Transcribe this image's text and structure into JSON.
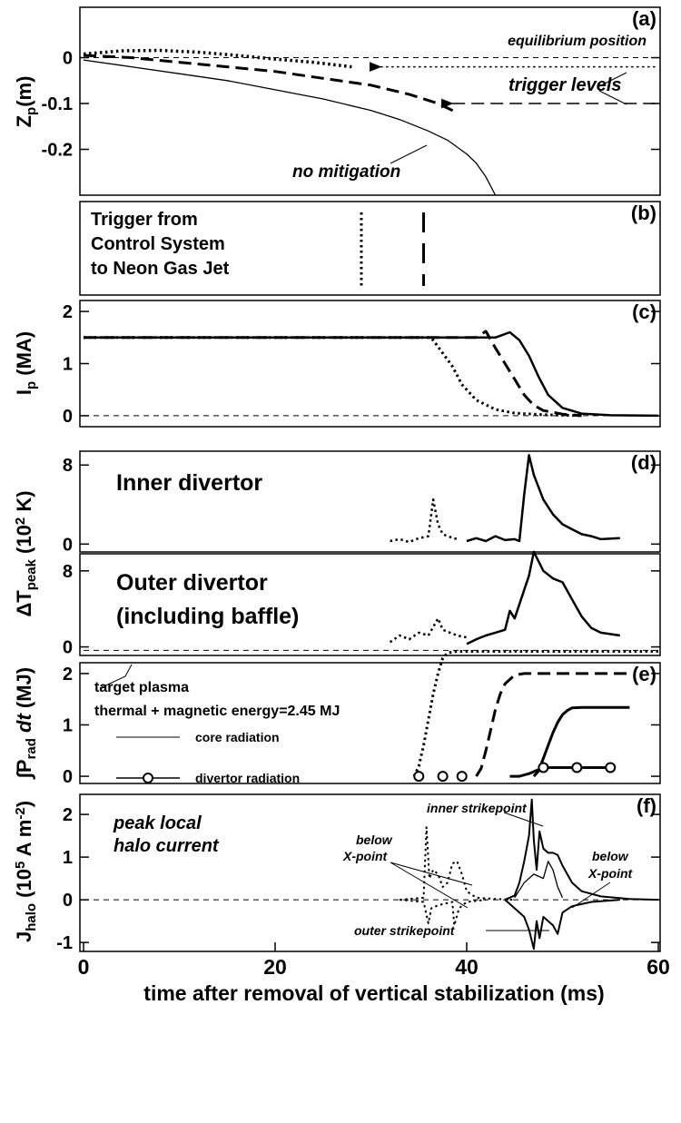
{
  "chart_data": [
    {
      "type": "line",
      "panel_label": "(a)",
      "xlim": [
        0,
        60
      ],
      "ylim": [
        -0.3,
        0.11
      ],
      "yticks": [
        0,
        -0.1,
        -0.2
      ],
      "ylabel": [
        {
          "text": "Z"
        },
        {
          "text": "p",
          "sub": true
        },
        {
          "text": "(m)"
        }
      ],
      "annotations": [
        "equilibrium position",
        "trigger levels",
        "no mitigation"
      ],
      "series": [
        {
          "color": "#000",
          "dash": "solid",
          "width": 1.3,
          "x": [
            0,
            5,
            10,
            15,
            20,
            25,
            30,
            33,
            36,
            38,
            40,
            41,
            42,
            43
          ],
          "values": [
            -0.005,
            -0.02,
            -0.035,
            -0.05,
            -0.07,
            -0.09,
            -0.115,
            -0.135,
            -0.16,
            -0.18,
            -0.21,
            -0.23,
            -0.26,
            -0.3
          ]
        },
        {
          "color": "#000",
          "dash": "dashed",
          "width": 3,
          "x": [
            0,
            5,
            10,
            15,
            20,
            25,
            30,
            34,
            37,
            39
          ],
          "values": [
            0.005,
            0,
            -0.01,
            -0.02,
            -0.03,
            -0.045,
            -0.06,
            -0.08,
            -0.1,
            -0.12
          ]
        },
        {
          "color": "#000",
          "dash": "dotted",
          "width": 3.5,
          "x": [
            0,
            4,
            8,
            12,
            16,
            20,
            24,
            28
          ],
          "values": [
            0.008,
            0.015,
            0.016,
            0.012,
            0.005,
            -0.003,
            -0.01,
            -0.02
          ]
        },
        {
          "color": "#000",
          "dash": "thin-dashed",
          "width": 1,
          "x": [
            0,
            60
          ],
          "values": [
            0,
            0
          ]
        },
        {
          "color": "#000",
          "dash": "dotted",
          "width": 1.5,
          "arrow": "start",
          "x": [
            31,
            60
          ],
          "values": [
            -0.02,
            -0.02
          ]
        },
        {
          "color": "#000",
          "dash": "dashed",
          "width": 1.5,
          "arrow": "start",
          "x": [
            38.5,
            60
          ],
          "values": [
            -0.1,
            -0.1
          ]
        }
      ]
    },
    {
      "type": "timeline",
      "panel_label": "(b)",
      "xlim": [
        0,
        60
      ],
      "annotations": [
        "Trigger from",
        "Control System",
        "to Neon Gas Jet"
      ],
      "events": [
        {
          "x": 29,
          "dash": "dotted"
        },
        {
          "x": 35.5,
          "dash": "dashed"
        }
      ]
    },
    {
      "type": "line",
      "panel_label": "(c)",
      "xlim": [
        0,
        60
      ],
      "ylim": [
        -0.21,
        2.21
      ],
      "yticks": [
        0,
        1,
        2
      ],
      "ylabel": [
        {
          "text": "I"
        },
        {
          "text": "p",
          "sub": true
        },
        {
          "text": " (MA)"
        }
      ],
      "series": [
        {
          "color": "#000",
          "dash": "thin-dashed",
          "width": 1,
          "x": [
            0,
            60
          ],
          "values": [
            0,
            0
          ]
        },
        {
          "color": "#000",
          "dash": "solid",
          "width": 2.5,
          "x": [
            0,
            43,
            44.5,
            45.5,
            46.5,
            47.5,
            48.5,
            50,
            52,
            55,
            60
          ],
          "values": [
            1.5,
            1.5,
            1.6,
            1.45,
            1.15,
            0.75,
            0.4,
            0.15,
            0.04,
            0.01,
            0
          ]
        },
        {
          "color": "#000",
          "dash": "dashed",
          "width": 3,
          "x": [
            0,
            41,
            42,
            43,
            44,
            45,
            46,
            47,
            48,
            50,
            52
          ],
          "values": [
            1.5,
            1.5,
            1.62,
            1.3,
            1.0,
            0.7,
            0.4,
            0.2,
            0.1,
            0.03,
            0
          ]
        },
        {
          "color": "#000",
          "dash": "dotted",
          "width": 3,
          "x": [
            0,
            36,
            36.5,
            37.5,
            38.5,
            39.5,
            41,
            43,
            45,
            48,
            52
          ],
          "values": [
            1.5,
            1.5,
            1.45,
            1.2,
            0.95,
            0.6,
            0.3,
            0.12,
            0.05,
            0.02,
            0
          ]
        }
      ]
    },
    {
      "type": "line",
      "panel_label": "(d)",
      "xlim": [
        0,
        60
      ],
      "ylim": [
        -0.8,
        9.4
      ],
      "yticks": [
        0,
        8
      ],
      "ylabel": [
        {
          "text": "ΔT"
        },
        {
          "text": "peak",
          "sub": true
        },
        {
          "text": " (10"
        },
        {
          "text": "2",
          "sup": true
        },
        {
          "text": " K)"
        }
      ],
      "annotations": [
        "Inner divertor"
      ],
      "series": [
        {
          "color": "#000",
          "dash": "dotted",
          "width": 2.5,
          "x": [
            32,
            33,
            34,
            35,
            36,
            36.5,
            37,
            37.5,
            38,
            39
          ],
          "values": [
            0.3,
            0.5,
            0.2,
            0.6,
            0.8,
            4.5,
            2,
            1.0,
            0.8,
            0.5
          ]
        },
        {
          "color": "#000",
          "dash": "solid",
          "width": 2.5,
          "x": [
            40,
            41,
            42,
            43,
            44,
            45,
            45.5,
            46,
            46.5,
            47,
            48,
            49,
            50,
            51,
            52,
            53,
            54,
            56
          ],
          "values": [
            0.3,
            0.6,
            0.3,
            0.8,
            0.4,
            0.5,
            0.3,
            5,
            9,
            7,
            4.5,
            3,
            2,
            1.5,
            1.0,
            0.8,
            0.5,
            0.6
          ]
        }
      ]
    },
    {
      "type": "line",
      "xlim": [
        0,
        60
      ],
      "ylim": [
        -0.9,
        9.8
      ],
      "yticks": [
        0,
        8
      ],
      "annotations": [
        "Outer divertor",
        "(including baffle)"
      ],
      "series": [
        {
          "color": "#000",
          "dash": "dotted",
          "width": 2.5,
          "x": [
            32,
            33,
            34,
            35,
            36,
            37,
            37.5,
            38,
            39,
            40
          ],
          "values": [
            0.5,
            1.2,
            0.8,
            1.5,
            1.2,
            3,
            1.8,
            1.6,
            1.2,
            1.0
          ]
        },
        {
          "color": "#000",
          "dash": "solid",
          "width": 2.5,
          "x": [
            40,
            41,
            42,
            43,
            44,
            44.5,
            45,
            46,
            46.5,
            47,
            48,
            49,
            50,
            51,
            52,
            53,
            54,
            56
          ],
          "values": [
            0.3,
            0.8,
            1.2,
            1.5,
            1.8,
            3.8,
            3,
            6,
            7.5,
            10,
            8,
            7.2,
            6.8,
            5,
            3.2,
            2,
            1.5,
            1.2
          ]
        }
      ]
    },
    {
      "type": "line",
      "panel_label": "(e)",
      "xlim": [
        0,
        60
      ],
      "ylim": [
        -0.14,
        2.21
      ],
      "yticks": [
        0,
        1,
        2
      ],
      "ylabel": [
        {
          "text": "∫P"
        },
        {
          "text": "rad",
          "sub": true
        },
        {
          "text": " dt",
          "italic": true
        },
        {
          "text": " (MJ)"
        }
      ],
      "annotations": [
        "target plasma",
        "thermal + magnetic energy=2.45 MJ"
      ],
      "legend": [
        {
          "name": "core radiation",
          "dash": "solid",
          "width": 1
        },
        {
          "name": "divertor radiation",
          "dash": "solid",
          "width": 1.5,
          "marker": "circle"
        }
      ],
      "series": [
        {
          "color": "#000",
          "dash": "thin-dashed",
          "width": 1,
          "x": [
            0,
            60
          ],
          "values": [
            2.45,
            2.45
          ]
        },
        {
          "color": "#000",
          "dash": "dotted",
          "width": 3,
          "x": [
            34.5,
            35,
            35.5,
            36,
            36.5,
            37,
            37.5,
            38,
            39,
            60
          ],
          "values": [
            0,
            0.2,
            0.6,
            1.1,
            1.6,
            2.0,
            2.3,
            2.4,
            2.43,
            2.43
          ]
        },
        {
          "color": "#000",
          "dash": "dashed",
          "width": 3,
          "x": [
            41,
            41.5,
            42,
            42.5,
            43,
            43.5,
            44,
            45,
            46,
            57
          ],
          "values": [
            0,
            0.15,
            0.5,
            0.9,
            1.3,
            1.6,
            1.8,
            1.97,
            2.0,
            2.0
          ]
        },
        {
          "color": "#000",
          "dash": "solid",
          "width": 3,
          "x": [
            47,
            47.5,
            48,
            48.5,
            49,
            49.5,
            50,
            50.5,
            51,
            52,
            57
          ],
          "values": [
            0,
            0.1,
            0.35,
            0.6,
            0.85,
            1.05,
            1.2,
            1.28,
            1.33,
            1.34,
            1.34
          ]
        },
        {
          "color": "#000",
          "dash": "solid",
          "width": 3,
          "x": [
            44.5,
            45.5,
            46.5,
            47.5,
            48.5,
            55
          ],
          "values": [
            0,
            0,
            0.05,
            0.13,
            0.17,
            0.17
          ]
        },
        {
          "color": "#000",
          "dash": "none",
          "width": 2,
          "marker": "circle",
          "x": [
            35,
            37.5,
            39.5,
            48,
            51.5,
            55
          ],
          "values": [
            0,
            0,
            0,
            0.17,
            0.17,
            0.17
          ]
        }
      ]
    },
    {
      "type": "line",
      "panel_label": "(f)",
      "xlim": [
        0,
        60
      ],
      "ylim": [
        -1.21,
        2.47
      ],
      "yticks": [
        -1,
        0,
        1,
        2
      ],
      "xticks": [
        0,
        20,
        40,
        60
      ],
      "xlabel": "time after removal of vertical stabilization (ms)",
      "ylabel": [
        {
          "text": "J"
        },
        {
          "text": "halo",
          "sub": true
        },
        {
          "text": " (10"
        },
        {
          "text": "5",
          "sup": true
        },
        {
          "text": " A m"
        },
        {
          "text": "-2",
          "sup": true
        },
        {
          "text": ")"
        }
      ],
      "annotations": [
        "peak local",
        "halo current",
        "inner strikepoint",
        "below",
        "X-point",
        "below",
        "X-point",
        "outer strikepoint"
      ],
      "series": [
        {
          "color": "#000",
          "dash": "thin-dashed",
          "width": 1,
          "x": [
            0,
            60
          ],
          "values": [
            0,
            0
          ]
        },
        {
          "color": "#000",
          "dash": "dotted",
          "width": 2,
          "x": [
            33,
            35.5,
            35.8,
            36.1,
            36.5,
            37,
            37.5,
            38,
            38.5,
            39,
            39.5,
            40,
            41,
            43,
            45
          ],
          "values": [
            0,
            0.05,
            1.7,
            0.5,
            0.7,
            0.6,
            0.3,
            0.4,
            0.85,
            0.9,
            0.6,
            0.2,
            0.05,
            0.02,
            0
          ]
        },
        {
          "color": "#000",
          "dash": "dotted",
          "width": 2,
          "x": [
            33,
            35.5,
            36,
            36.3,
            36.8,
            37.5,
            38.5,
            38.7,
            39.2,
            40,
            42
          ],
          "values": [
            0,
            -0.05,
            -0.55,
            -0.2,
            -0.15,
            -0.1,
            -0.05,
            -0.6,
            -0.2,
            -0.05,
            0
          ]
        },
        {
          "color": "#000",
          "dash": "solid",
          "width": 2,
          "x": [
            44,
            45,
            45.5,
            46,
            46.5,
            46.8,
            47,
            47.3,
            47.6,
            48,
            48.5,
            49,
            49.5,
            50,
            51,
            52,
            54,
            57,
            60
          ],
          "values": [
            0,
            0.1,
            0.4,
            0.9,
            1.5,
            2.35,
            1.4,
            0.7,
            1.6,
            1.2,
            1.1,
            1.1,
            1.05,
            0.8,
            0.4,
            0.2,
            0.08,
            0.02,
            0
          ]
        },
        {
          "color": "#000",
          "dash": "solid",
          "width": 1.3,
          "x": [
            45,
            46,
            47,
            48,
            48.5,
            49,
            49.5,
            50
          ],
          "values": [
            0.05,
            0.4,
            0.6,
            0.5,
            0.9,
            0.7,
            0.3,
            0.05
          ]
        },
        {
          "color": "#000",
          "dash": "solid",
          "width": 2,
          "x": [
            44,
            45,
            46,
            46.5,
            47,
            47.3,
            47.6,
            48,
            49,
            49.5,
            50,
            51,
            53,
            56
          ],
          "values": [
            0,
            -0.2,
            -0.4,
            -0.7,
            -1.15,
            -0.5,
            -0.9,
            -0.4,
            -0.6,
            -0.8,
            -0.3,
            -0.15,
            -0.05,
            0
          ]
        }
      ]
    }
  ]
}
